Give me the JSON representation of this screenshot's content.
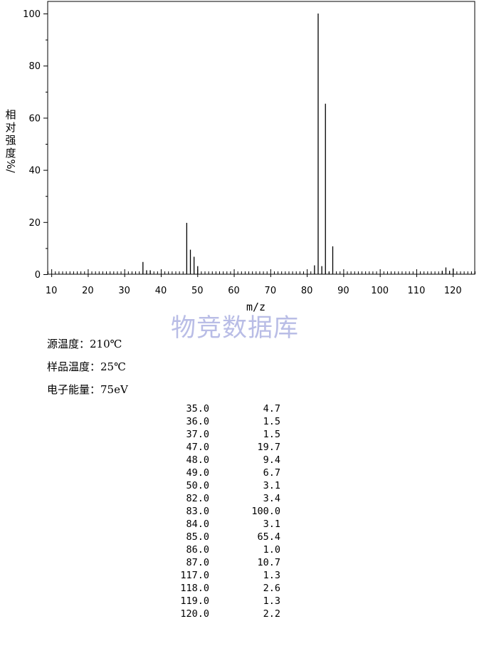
{
  "chart_data": {
    "type": "bar",
    "xlabel": "m/z",
    "ylabel": "相对强度/%",
    "xlim": [
      9,
      126
    ],
    "ylim": [
      0,
      100
    ],
    "xticks": [
      10,
      20,
      30,
      40,
      50,
      60,
      70,
      80,
      90,
      100,
      110,
      120
    ],
    "yticks": [
      0,
      20,
      40,
      60,
      80,
      100
    ],
    "x": [
      35,
      36,
      37,
      47,
      48,
      49,
      50,
      82,
      83,
      84,
      85,
      86,
      87,
      117,
      118,
      119,
      120
    ],
    "values": [
      4.7,
      1.5,
      1.5,
      19.7,
      9.4,
      6.7,
      3.1,
      3.4,
      100.0,
      3.1,
      65.4,
      1.0,
      10.7,
      1.3,
      2.6,
      1.3,
      2.2
    ]
  },
  "ylabel_chars": [
    "相",
    "对",
    "强",
    "度",
    "%/"
  ],
  "watermark": "物竞数据库",
  "conditions": {
    "source_temp": "源温度：210℃",
    "sample_temp": "样品温度：25℃",
    "electron_energy": "电子能量：75eV"
  },
  "peaks": [
    {
      "mz": "35.0",
      "intensity": "4.7"
    },
    {
      "mz": "36.0",
      "intensity": "1.5"
    },
    {
      "mz": "37.0",
      "intensity": "1.5"
    },
    {
      "mz": "47.0",
      "intensity": "19.7"
    },
    {
      "mz": "48.0",
      "intensity": "9.4"
    },
    {
      "mz": "49.0",
      "intensity": "6.7"
    },
    {
      "mz": "50.0",
      "intensity": "3.1"
    },
    {
      "mz": "82.0",
      "intensity": "3.4"
    },
    {
      "mz": "83.0",
      "intensity": "100.0"
    },
    {
      "mz": "84.0",
      "intensity": "3.1"
    },
    {
      "mz": "85.0",
      "intensity": "65.4"
    },
    {
      "mz": "86.0",
      "intensity": "1.0"
    },
    {
      "mz": "87.0",
      "intensity": "10.7"
    },
    {
      "mz": "117.0",
      "intensity": "1.3"
    },
    {
      "mz": "118.0",
      "intensity": "2.6"
    },
    {
      "mz": "119.0",
      "intensity": "1.3"
    },
    {
      "mz": "120.0",
      "intensity": "2.2"
    }
  ]
}
